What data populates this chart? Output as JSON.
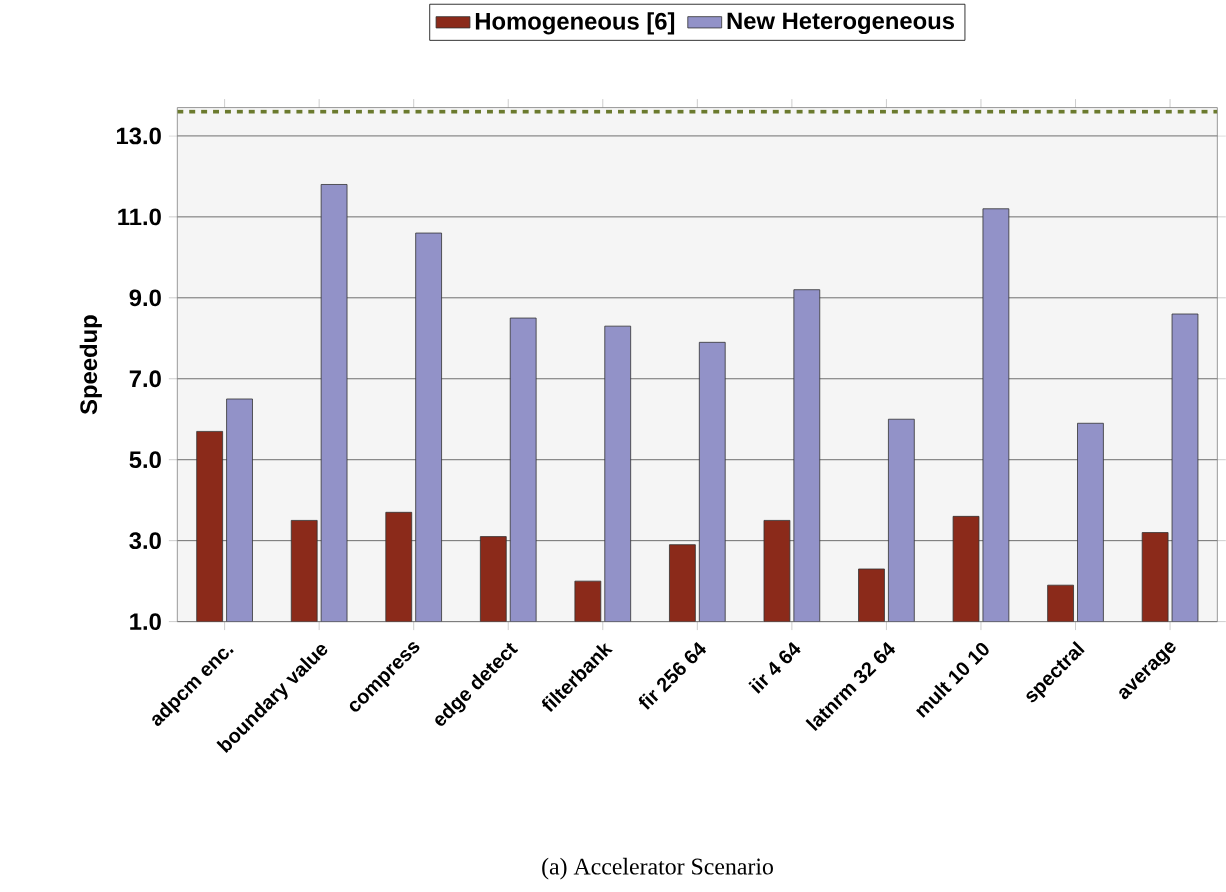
{
  "chart_data": {
    "type": "bar",
    "ylabel": "Speedup",
    "categories": [
      "adpcm enc.",
      "boundary value",
      "compress",
      "edge detect",
      "filterbank",
      "fir 256 64",
      "iir 4 64",
      "latnrm 32 64",
      "mult 10 10",
      "spectral",
      "average"
    ],
    "series": [
      {
        "name": "Homogeneous [6]",
        "color": "#8b2a1a",
        "values": [
          5.7,
          3.5,
          3.7,
          3.1,
          2.0,
          2.9,
          3.5,
          2.3,
          3.6,
          1.9,
          3.2
        ]
      },
      {
        "name": "New Heterogeneous",
        "color": "#9292c8",
        "values": [
          6.5,
          11.8,
          10.6,
          8.5,
          8.3,
          7.9,
          9.2,
          6.0,
          11.2,
          5.9,
          8.6
        ]
      }
    ],
    "ylim": [
      1,
      13.7
    ],
    "yticks": [
      {
        "value": 1,
        "label": "1.0"
      },
      {
        "value": 3,
        "label": "3.0"
      },
      {
        "value": 5,
        "label": "5.0"
      },
      {
        "value": 7,
        "label": "7.0"
      },
      {
        "value": 9,
        "label": "9.0"
      },
      {
        "value": 11,
        "label": "11.0"
      },
      {
        "value": 13,
        "label": "13.0"
      }
    ],
    "grid": "y",
    "legend": "top",
    "ref_lines": [
      {
        "axis": "y",
        "value": 13.6,
        "color": "#6b7a2e",
        "line_style": "dashed"
      }
    ],
    "annotations": [
      "(a) Accelerator Scenario"
    ]
  }
}
